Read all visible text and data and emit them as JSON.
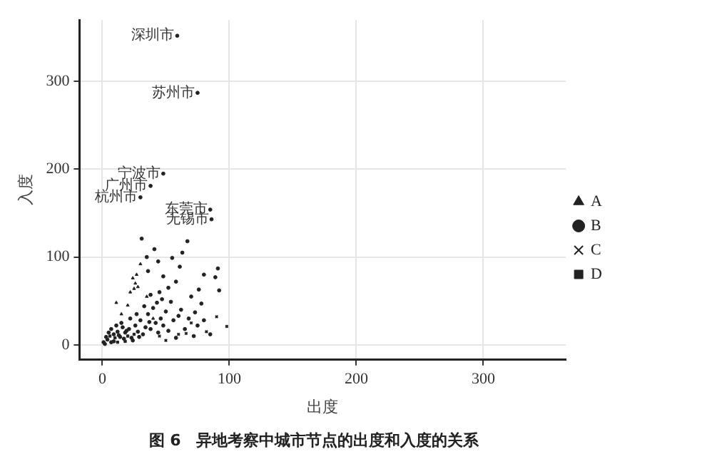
{
  "chart_data": {
    "type": "scatter",
    "title": "图 6　异地考察中城市节点的出度和入度的关系",
    "xlabel": "出度",
    "ylabel": "入度",
    "xlim": [
      -18,
      365
    ],
    "ylim": [
      -17,
      370
    ],
    "xticks": [
      0,
      100,
      200,
      300
    ],
    "yticks": [
      0,
      100,
      200,
      300
    ],
    "grid": true,
    "legend": "right",
    "annotations": [
      {
        "text": "深圳市",
        "x": 59,
        "y": 352
      },
      {
        "text": "苏州市",
        "x": 75,
        "y": 287
      },
      {
        "text": "宁波市",
        "x": 48,
        "y": 195
      },
      {
        "text": "广州市",
        "x": 38,
        "y": 181
      },
      {
        "text": "杭州市",
        "x": 30,
        "y": 168
      },
      {
        "text": "东莞市",
        "x": 85,
        "y": 154
      },
      {
        "text": "无锡市",
        "x": 86,
        "y": 143
      }
    ],
    "series": [
      {
        "name": "A",
        "color": "#222222",
        "marker": "triangle",
        "x": [
          24,
          26,
          25,
          22,
          28,
          11,
          30,
          27,
          20,
          15,
          35,
          40
        ],
        "values": [
          76,
          70,
          64,
          60,
          66,
          48,
          92,
          80,
          45,
          35,
          55,
          30
        ]
      },
      {
        "name": "B",
        "color": "#222222",
        "marker": "circle",
        "x": [
          59,
          75,
          48,
          38,
          30,
          85,
          86,
          31,
          67,
          41,
          55,
          61,
          91,
          89,
          92,
          76,
          48,
          36,
          73,
          78,
          60,
          54,
          47,
          38,
          2,
          4,
          7,
          9,
          12,
          14,
          16,
          18,
          21,
          23,
          26,
          28,
          30,
          32,
          34,
          36,
          38,
          40,
          42,
          44,
          46,
          48,
          50,
          52,
          56,
          58,
          62,
          65,
          68,
          72,
          75,
          80,
          85,
          1,
          3,
          5,
          7,
          9,
          11,
          13,
          15,
          17,
          19,
          22,
          24,
          27,
          29,
          33,
          37,
          43,
          45,
          52,
          58,
          35,
          44,
          63,
          80,
          70
        ],
        "values": [
          352,
          287,
          195,
          181,
          168,
          154,
          143,
          121,
          118,
          109,
          99,
          89,
          87,
          77,
          62,
          63,
          78,
          84,
          37,
          47,
          33,
          49,
          52,
          57,
          1,
          6,
          3,
          12,
          15,
          9,
          20,
          14,
          18,
          8,
          22,
          15,
          28,
          12,
          20,
          35,
          18,
          42,
          25,
          14,
          30,
          22,
          38,
          16,
          28,
          8,
          40,
          18,
          30,
          10,
          22,
          28,
          12,
          3,
          9,
          14,
          18,
          4,
          22,
          11,
          25,
          7,
          16,
          30,
          5,
          35,
          9,
          44,
          26,
          48,
          60,
          65,
          72,
          100,
          95,
          105,
          80,
          55
        ]
      },
      {
        "name": "C",
        "color": "#222222",
        "marker": "cross",
        "x": [
          98,
          90,
          82,
          66,
          45,
          70,
          60,
          50
        ],
        "values": [
          21,
          32,
          15,
          13,
          10,
          25,
          12,
          5
        ]
      },
      {
        "name": "D",
        "color": "#222222",
        "marker": "square",
        "x": [
          12,
          10,
          20,
          6,
          18,
          25
        ],
        "values": [
          3,
          8,
          10,
          10,
          4,
          12
        ]
      }
    ]
  }
}
